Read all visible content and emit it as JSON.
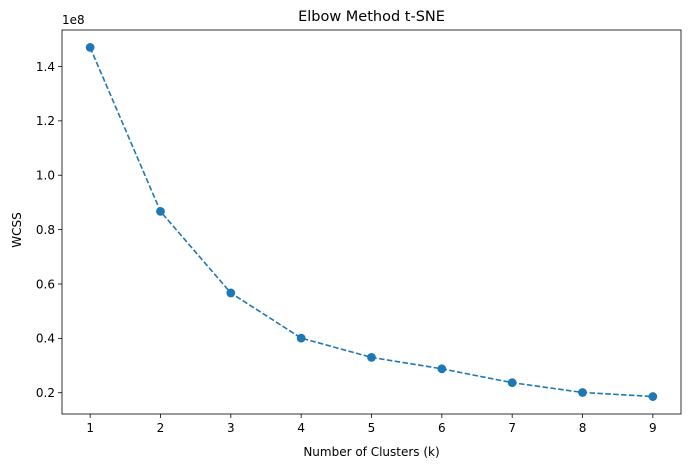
{
  "chart_data": {
    "type": "line",
    "title": "Elbow Method t-SNE",
    "xlabel": "Number of Clusters (k)",
    "ylabel": "WCSS",
    "y_offset_text": "1e8",
    "x": [
      1,
      2,
      3,
      4,
      5,
      6,
      7,
      8,
      9
    ],
    "series": [
      {
        "values": [
          147000000,
          86700000,
          56700000,
          40100000,
          33000000,
          28800000,
          23700000,
          20100000,
          18600000
        ],
        "color": "#1f77b4",
        "line_style": "dashed",
        "marker": "circle"
      }
    ],
    "xticks": [
      "1",
      "2",
      "3",
      "4",
      "5",
      "6",
      "7",
      "8",
      "9"
    ],
    "yticks": [
      "0.2",
      "0.4",
      "0.6",
      "0.8",
      "1.0",
      "1.2",
      "1.4"
    ],
    "ytick_values": [
      20000000,
      40000000,
      60000000,
      80000000,
      100000000,
      120000000,
      140000000
    ],
    "xlim": [
      0.6,
      9.4
    ],
    "ylim": [
      12180000,
      153420000
    ],
    "grid": false,
    "legend": "none"
  }
}
